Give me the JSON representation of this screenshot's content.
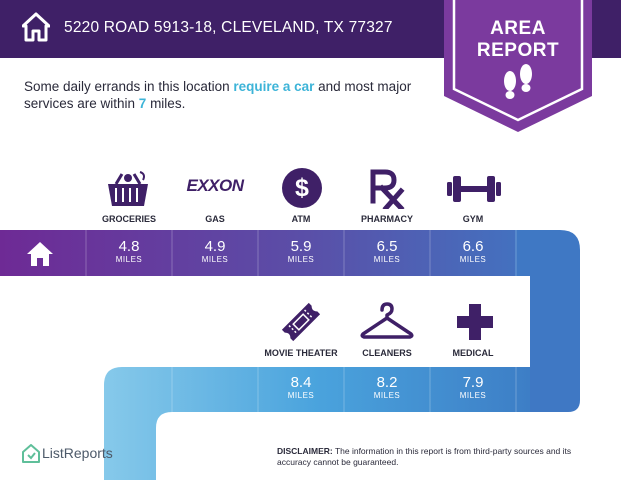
{
  "header": {
    "address": "5220 ROAD 5913-18, CLEVELAND, TX 77327",
    "home_icon": "home-icon"
  },
  "badge": {
    "line1": "AREA",
    "line2": "REPORT",
    "icon": "footprints-icon"
  },
  "intro": {
    "text_before": "Some daily errands in this location ",
    "highlight1": "require a car",
    "text_middle": " and most major services are within ",
    "highlight2": "7",
    "text_after": " miles."
  },
  "row1": {
    "start_icon": "home-icon",
    "items": [
      {
        "label": "GROCERIES",
        "icon": "basket-icon",
        "distance": "4.8",
        "unit": "MILES"
      },
      {
        "label": "GAS",
        "icon": "exxon-logo",
        "icon_text": "EXXON",
        "distance": "4.9",
        "unit": "MILES"
      },
      {
        "label": "ATM",
        "icon": "dollar-icon",
        "icon_text": "$",
        "distance": "5.9",
        "unit": "MILES"
      },
      {
        "label": "PHARMACY",
        "icon": "rx-icon",
        "distance": "6.5",
        "unit": "MILES"
      },
      {
        "label": "GYM",
        "icon": "dumbbell-icon",
        "distance": "6.6",
        "unit": "MILES"
      }
    ]
  },
  "row2": {
    "items": [
      {
        "label": "MOVIE THEATER",
        "icon": "ticket-icon",
        "distance": "8.4",
        "unit": "MILES"
      },
      {
        "label": "CLEANERS",
        "icon": "hanger-icon",
        "distance": "8.2",
        "unit": "MILES"
      },
      {
        "label": "MEDICAL",
        "icon": "medical-cross-icon",
        "distance": "7.9",
        "unit": "MILES"
      }
    ]
  },
  "footer": {
    "brand": "ListReports",
    "brand_icon": "listreports-logo",
    "disclaimer_label": "DISCLAIMER:",
    "disclaimer_text": " The information in this report is from third-party sources and its accuracy cannot be guaranteed."
  },
  "colors": {
    "header": "#3f2067",
    "badge": "#7b3a9e",
    "accent": "#3db4d8",
    "icons": "#3f2067"
  }
}
